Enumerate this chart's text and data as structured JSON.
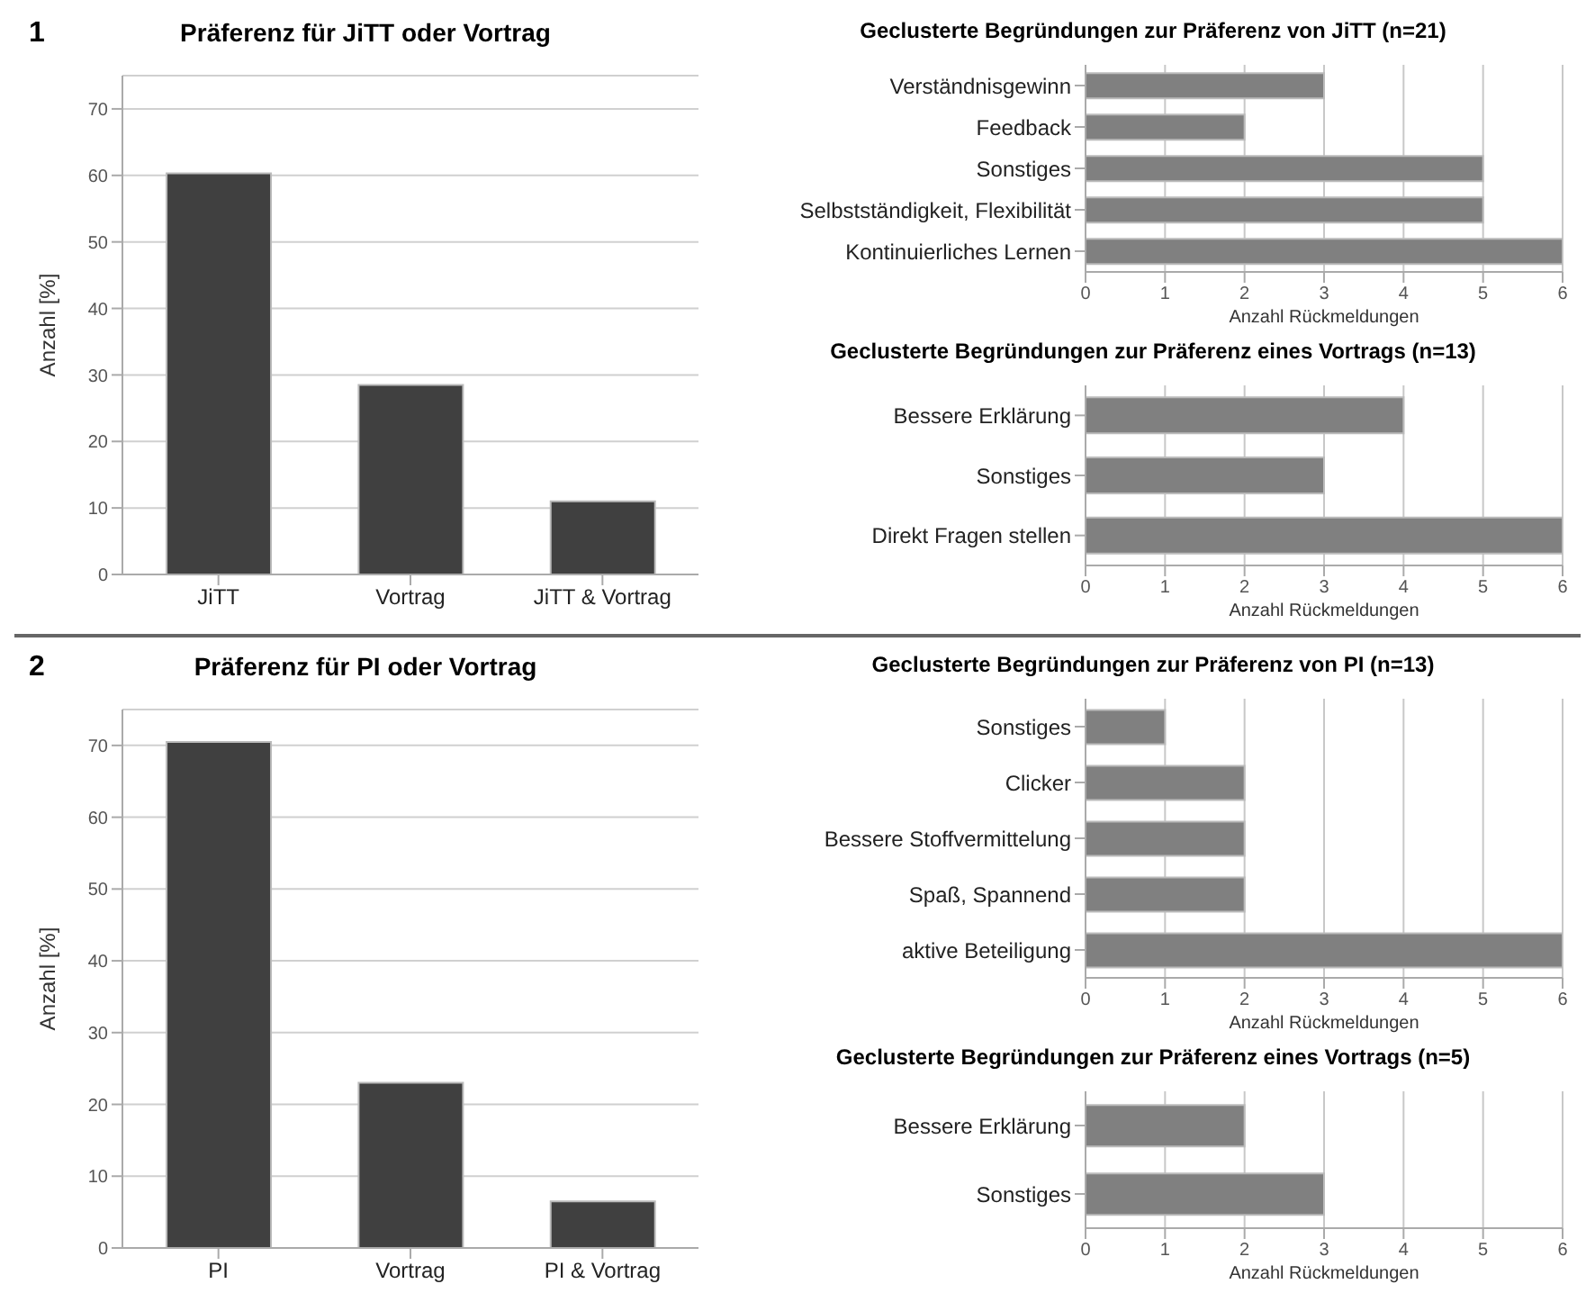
{
  "chart_data": [
    {
      "type": "bar",
      "title": "Präferenz für JiTT oder Vortrag",
      "annotations": [
        "1"
      ],
      "ylabel": "Anzahl [%]",
      "categories": [
        "JiTT",
        "Vortrag",
        "JiTT & Vortrag"
      ],
      "values": [
        60.3,
        28.5,
        11
      ],
      "color": "#404040",
      "ylim": [
        0,
        75
      ],
      "yticks": [
        0,
        10,
        20,
        30,
        40,
        50,
        60,
        70
      ],
      "grid": "y"
    },
    {
      "type": "bar",
      "orientation": "horizontal",
      "title": "Geclusterte Begründungen zur Präferenz von JiTT (n=21)",
      "xlabel": "Anzahl Rückmeldungen",
      "categories": [
        "Verständnisgewinn",
        "Feedback",
        "Sonstiges",
        "Selbstständigkeit, Flexibilität",
        "Kontinuierliches Lernen"
      ],
      "values": [
        3,
        2,
        5,
        5,
        6
      ],
      "color": "#808080",
      "xlim": [
        0,
        6
      ],
      "xticks": [
        0,
        1,
        2,
        3,
        4,
        5,
        6
      ],
      "grid": "x"
    },
    {
      "type": "bar",
      "orientation": "horizontal",
      "title": "Geclusterte Begründungen zur Präferenz eines Vortrags (n=13)",
      "xlabel": "Anzahl Rückmeldungen",
      "categories": [
        "Bessere Erklärung",
        "Sonstiges",
        "Direkt Fragen stellen"
      ],
      "values": [
        4,
        3,
        6
      ],
      "color": "#808080",
      "xlim": [
        0,
        6
      ],
      "xticks": [
        0,
        1,
        2,
        3,
        4,
        5,
        6
      ],
      "grid": "x"
    },
    {
      "type": "bar",
      "title": "Präferenz für PI oder Vortrag",
      "annotations": [
        "2"
      ],
      "ylabel": "Anzahl [%]",
      "categories": [
        "PI",
        "Vortrag",
        "PI & Vortrag"
      ],
      "values": [
        70.5,
        23,
        6.5
      ],
      "color": "#404040",
      "ylim": [
        0,
        75
      ],
      "yticks": [
        0,
        10,
        20,
        30,
        40,
        50,
        60,
        70
      ],
      "grid": "y"
    },
    {
      "type": "bar",
      "orientation": "horizontal",
      "title": "Geclusterte Begründungen zur Präferenz von PI (n=13)",
      "xlabel": "Anzahl Rückmeldungen",
      "categories": [
        "Sonstiges",
        "Clicker",
        "Bessere Stoffvermittelung",
        "Spaß, Spannend",
        "aktive Beteiligung"
      ],
      "values": [
        1,
        2,
        2,
        2,
        6
      ],
      "color": "#808080",
      "xlim": [
        0,
        6
      ],
      "xticks": [
        0,
        1,
        2,
        3,
        4,
        5,
        6
      ],
      "grid": "x"
    },
    {
      "type": "bar",
      "orientation": "horizontal",
      "title": "Geclusterte Begründungen zur Präferenz eines Vortrags (n=5)",
      "xlabel": "Anzahl Rückmeldungen",
      "categories": [
        "Bessere Erklärung",
        "Sonstiges"
      ],
      "values": [
        2,
        3
      ],
      "color": "#808080",
      "xlim": [
        0,
        6
      ],
      "xticks": [
        0,
        1,
        2,
        3,
        4,
        5,
        6
      ],
      "grid": "x"
    }
  ]
}
